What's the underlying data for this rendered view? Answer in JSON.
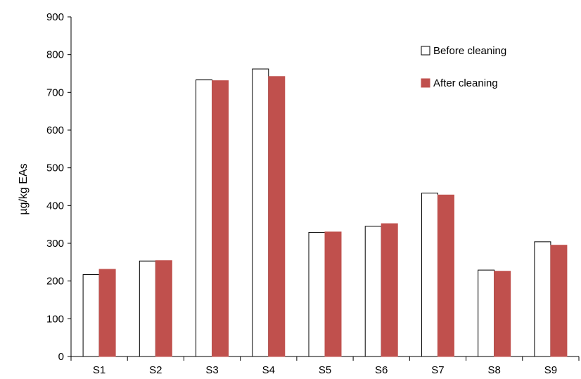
{
  "chart_data": {
    "type": "bar",
    "title": "",
    "xlabel": "",
    "ylabel": "µg/kg EAs",
    "ylim": [
      0,
      900
    ],
    "yticks": [
      0,
      100,
      200,
      300,
      400,
      500,
      600,
      700,
      800,
      900
    ],
    "grid": false,
    "legend_position": "top-right",
    "categories": [
      "S1",
      "S2",
      "S3",
      "S4",
      "S5",
      "S6",
      "S7",
      "S8",
      "S9"
    ],
    "series": [
      {
        "name": "Before cleaning",
        "color": "#ffffff",
        "stroke": "#000000",
        "values": [
          217,
          253,
          733,
          762,
          329,
          345,
          433,
          229,
          304
        ]
      },
      {
        "name": "After cleaning",
        "color": "#c0504d",
        "stroke": "#c0504d",
        "values": [
          231,
          254,
          731,
          742,
          330,
          352,
          428,
          226,
          295
        ]
      }
    ]
  }
}
